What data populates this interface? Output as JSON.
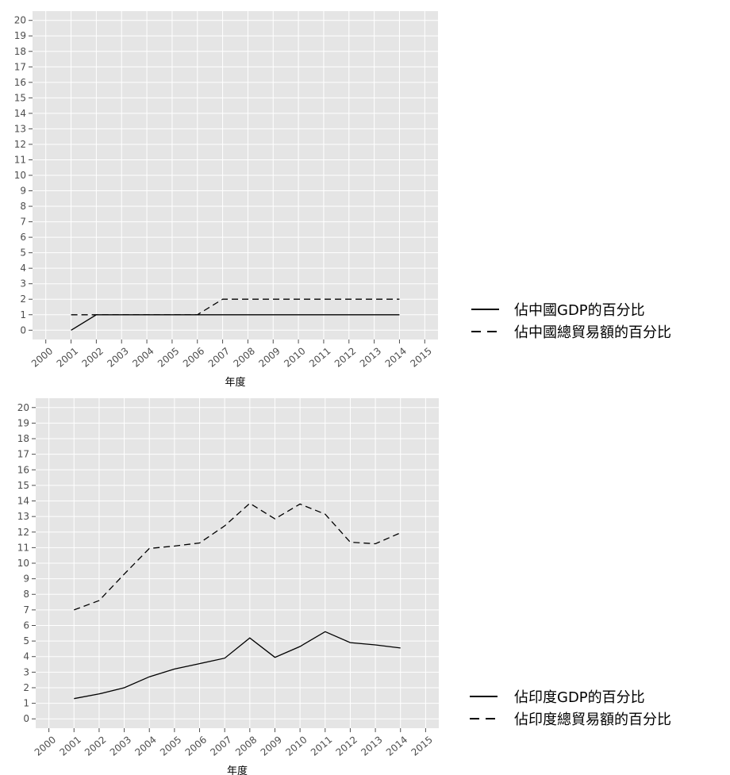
{
  "chart_data": [
    {
      "type": "line",
      "xlabel": "年度",
      "ylabel": "",
      "xlim": [
        2000,
        2015
      ],
      "ylim": [
        0,
        20
      ],
      "grid": true,
      "legend_position": "right",
      "x": [
        2001,
        2002,
        2003,
        2004,
        2005,
        2006,
        2007,
        2008,
        2009,
        2010,
        2011,
        2012,
        2013,
        2014
      ],
      "x_ticks": [
        2000,
        2001,
        2002,
        2003,
        2004,
        2005,
        2006,
        2007,
        2008,
        2009,
        2010,
        2011,
        2012,
        2013,
        2014,
        2015
      ],
      "y_ticks": [
        0,
        1,
        2,
        3,
        4,
        5,
        6,
        7,
        8,
        9,
        10,
        11,
        12,
        13,
        14,
        15,
        16,
        17,
        18,
        19,
        20
      ],
      "series": [
        {
          "name": "佔中國GDP的百分比",
          "style": "solid",
          "values": [
            0,
            1,
            1,
            1,
            1,
            1,
            1,
            1,
            1,
            1,
            1,
            1,
            1,
            1
          ]
        },
        {
          "name": "佔中國總貿易額的百分比",
          "style": "dashed",
          "values": [
            1,
            1,
            1,
            1,
            1,
            1,
            2,
            2,
            2,
            2,
            2,
            2,
            2,
            2
          ]
        }
      ]
    },
    {
      "type": "line",
      "xlabel": "年度",
      "ylabel": "",
      "xlim": [
        2000,
        2015
      ],
      "ylim": [
        0,
        20
      ],
      "grid": true,
      "legend_position": "right",
      "x": [
        2001,
        2002,
        2003,
        2004,
        2005,
        2006,
        2007,
        2008,
        2009,
        2010,
        2011,
        2012,
        2013,
        2014
      ],
      "x_ticks": [
        2000,
        2001,
        2002,
        2003,
        2004,
        2005,
        2006,
        2007,
        2008,
        2009,
        2010,
        2011,
        2012,
        2013,
        2014,
        2015
      ],
      "y_ticks": [
        0,
        1,
        2,
        3,
        4,
        5,
        6,
        7,
        8,
        9,
        10,
        11,
        12,
        13,
        14,
        15,
        16,
        17,
        18,
        19,
        20
      ],
      "series": [
        {
          "name": "佔印度GDP的百分比",
          "style": "solid",
          "values": [
            1.3,
            1.6,
            2.0,
            2.7,
            3.2,
            3.55,
            3.9,
            5.2,
            3.95,
            4.65,
            5.6,
            4.9,
            4.75,
            4.55
          ]
        },
        {
          "name": "佔印度總貿易額的百分比",
          "style": "dashed",
          "values": [
            7.0,
            7.6,
            9.3,
            10.95,
            11.1,
            11.3,
            12.4,
            13.85,
            12.85,
            13.8,
            13.15,
            11.35,
            11.25,
            11.95
          ]
        }
      ]
    }
  ],
  "colors": {
    "panel_bg": "#e5e5e5",
    "grid": "#ffffff",
    "line": "#000000",
    "axis_text": "#4d4d4d"
  }
}
